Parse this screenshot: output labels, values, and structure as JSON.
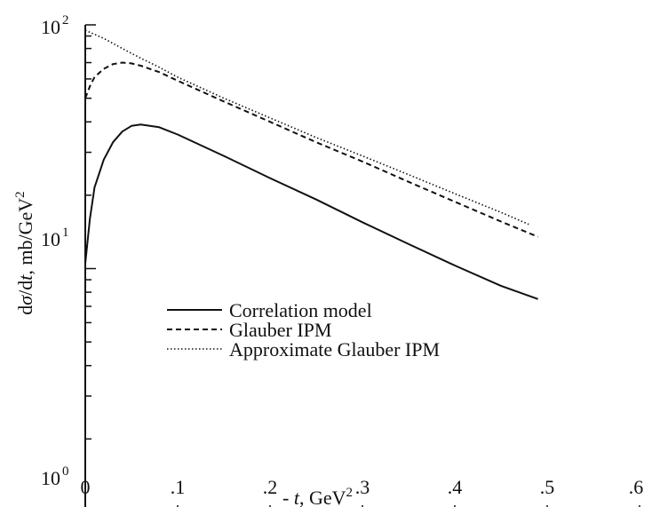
{
  "chart_data": {
    "type": "line",
    "xlabel": "- t, GeV2",
    "ylabel": "dσ/dt, mb/GeV2",
    "xlim": [
      0,
      0.6
    ],
    "ylim": [
      1,
      100
    ],
    "y_scale": "log",
    "grid": false,
    "legend_position": "center-left",
    "x_ticks": [
      ".1",
      ".2",
      ".3",
      ".4",
      ".5",
      ".6"
    ],
    "x_zero_label": "0",
    "y_ticks": [
      "10",
      "10",
      "10"
    ],
    "y_tick_exponents": [
      "0",
      "1",
      "2"
    ],
    "series": [
      {
        "name": "Correlation model",
        "style": "solid",
        "x": [
          0.0,
          0.005,
          0.01,
          0.02,
          0.03,
          0.04,
          0.05,
          0.06,
          0.08,
          0.1,
          0.15,
          0.2,
          0.25,
          0.3,
          0.35,
          0.4,
          0.45,
          0.49
        ],
        "y": [
          10.5,
          16,
          21.5,
          28,
          33,
          36.5,
          38.5,
          39,
          38,
          35.5,
          29,
          23.5,
          19.2,
          15.5,
          12.6,
          10.3,
          8.5,
          7.5
        ]
      },
      {
        "name": "Glauber IPM",
        "style": "dashed",
        "x": [
          0.0,
          0.005,
          0.01,
          0.02,
          0.03,
          0.04,
          0.05,
          0.06,
          0.08,
          0.1,
          0.15,
          0.2,
          0.25,
          0.3,
          0.35,
          0.4,
          0.45,
          0.49
        ],
        "y": [
          50,
          56,
          61,
          66,
          69,
          70,
          69.5,
          68,
          64,
          59,
          48.5,
          40,
          33,
          27.5,
          22.7,
          18.8,
          15.6,
          13.5
        ]
      },
      {
        "name": "Approximate Glauber IPM",
        "style": "dotted",
        "x": [
          0.0,
          0.02,
          0.04,
          0.06,
          0.08,
          0.1,
          0.15,
          0.2,
          0.25,
          0.3,
          0.35,
          0.4,
          0.45,
          0.48
        ],
        "y": [
          95,
          88,
          80,
          73,
          67,
          61,
          50,
          41.5,
          34.5,
          29,
          24.3,
          20.3,
          17,
          15.2
        ]
      }
    ]
  }
}
